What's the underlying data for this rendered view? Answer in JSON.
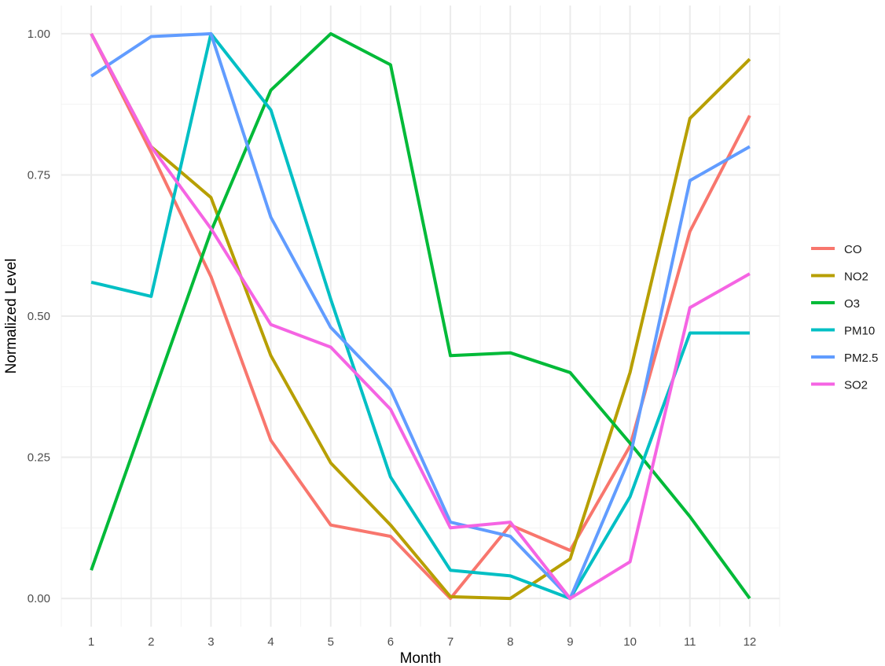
{
  "chart_data": {
    "type": "line",
    "title": "",
    "xlabel": "Month",
    "ylabel": "Normalized Level",
    "x": [
      1,
      2,
      3,
      4,
      5,
      6,
      7,
      8,
      9,
      10,
      11,
      12
    ],
    "xlim": [
      0.5,
      12.5
    ],
    "ylim": [
      -0.05,
      1.05
    ],
    "x_ticks": [
      1,
      2,
      3,
      4,
      5,
      6,
      7,
      8,
      9,
      10,
      11,
      12
    ],
    "y_ticks": [
      0,
      0.25,
      0.5,
      0.75,
      1.0
    ],
    "y_tick_labels": [
      "0.00",
      "0.25",
      "0.50",
      "0.75",
      "1.00"
    ],
    "grid": true,
    "legend_position": "right",
    "series": [
      {
        "name": "CO",
        "color": "#F8766D",
        "values": [
          1.0,
          0.79,
          0.57,
          0.28,
          0.13,
          0.11,
          0.0,
          0.13,
          0.085,
          0.27,
          0.65,
          0.855
        ]
      },
      {
        "name": "NO2",
        "color": "#B79F00",
        "values": [
          1.0,
          0.8,
          0.71,
          0.43,
          0.24,
          0.13,
          0.003,
          0.0,
          0.07,
          0.4,
          0.85,
          0.955
        ]
      },
      {
        "name": "O3",
        "color": "#00BA38",
        "values": [
          0.05,
          0.35,
          0.65,
          0.9,
          1.0,
          0.945,
          0.43,
          0.435,
          0.4,
          0.275,
          0.145,
          0.0
        ]
      },
      {
        "name": "PM10",
        "color": "#00BFC4",
        "values": [
          0.56,
          0.535,
          1.0,
          0.865,
          0.53,
          0.215,
          0.05,
          0.04,
          0.0,
          0.18,
          0.47,
          0.47
        ]
      },
      {
        "name": "PM2.5",
        "color": "#619CFF",
        "values": [
          0.925,
          0.995,
          1.0,
          0.675,
          0.48,
          0.37,
          0.135,
          0.11,
          0.0,
          0.25,
          0.74,
          0.8
        ]
      },
      {
        "name": "SO2",
        "color": "#F564E3",
        "values": [
          1.0,
          0.8,
          0.655,
          0.485,
          0.445,
          0.335,
          0.125,
          0.135,
          0.0,
          0.065,
          0.515,
          0.575
        ]
      }
    ]
  }
}
